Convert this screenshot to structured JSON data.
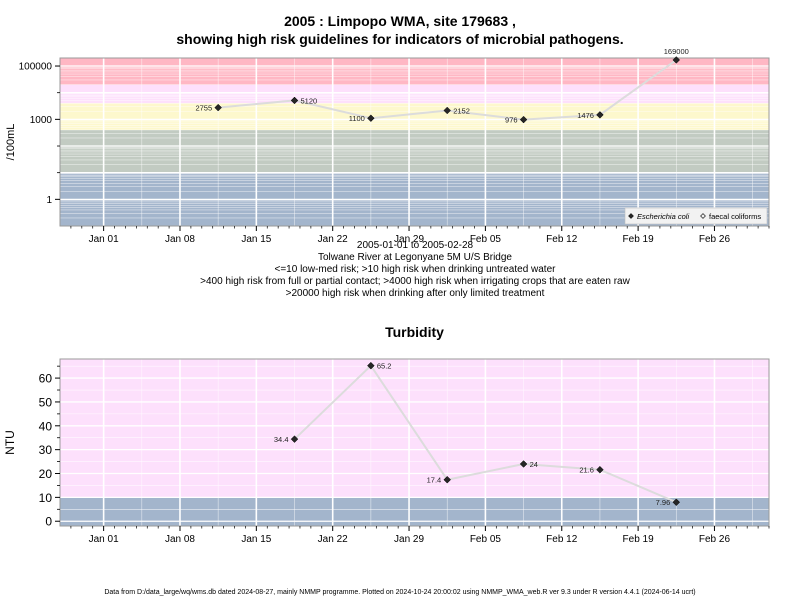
{
  "title": {
    "line1": "2005 : Limpopo WMA, site 179683 ,",
    "line2": "showing high risk guidelines for indicators of microbial pathogens."
  },
  "caption": {
    "date_range": "2005-01-01 to 2005-02-28",
    "site": "Tolwane River at Legonyane 5M U/S Bridge",
    "line3": "<=10 low-med risk; >10 high risk when drinking untreated water",
    "line4": ">400 high risk from full or partial contact; >4000 high risk when irrigating crops that are eaten raw",
    "line5": ">20000 high risk when drinking after only limited treatment"
  },
  "footer": "Data from D:/data_large/wq/wms.db dated 2024-08-27, mainly NMMP programme. Plotted on 2024-10-24 20:00:02 using NMMP_WMA_web.R ver 9.3 under R version 4.4.1 (2024-06-14 ucrt)",
  "colors": {
    "band_blue": "#a3b5cc",
    "band_green": "#c2cbc2",
    "band_yellow": "#fdf8cd",
    "band_pink": "#fde0fc",
    "band_red": "#ffb7c4",
    "line": "#dcdcdc",
    "marker": "#262626",
    "grid": "#ffffff"
  },
  "chart_data": [
    {
      "type": "line",
      "title": "",
      "ylabel": "/100mL",
      "yscale": "log",
      "ylim": [
        0.1,
        200000
      ],
      "x_ticks": [
        "Jan 01",
        "Jan 08",
        "Jan 15",
        "Jan 22",
        "Jan 29",
        "Feb 05",
        "Feb 12",
        "Feb 19",
        "Feb 26"
      ],
      "y_ticks": [
        {
          "value": 1,
          "label": "1"
        },
        {
          "value": 1000,
          "label": "1000"
        },
        {
          "value": 100000,
          "label": "100000"
        }
      ],
      "risk_bands": [
        {
          "from": 0.1,
          "to": 10,
          "color": "band_blue"
        },
        {
          "from": 10,
          "to": 400,
          "color": "band_green"
        },
        {
          "from": 400,
          "to": 4000,
          "color": "band_yellow"
        },
        {
          "from": 4000,
          "to": 20000,
          "color": "band_pink"
        },
        {
          "from": 20000,
          "to": 200000,
          "color": "band_red"
        }
      ],
      "legend": {
        "position": "bottom-right",
        "entries": [
          {
            "name": "Escherichia coli",
            "marker": "filled-diamond",
            "italic": true
          },
          {
            "name": "faecal coliforms",
            "marker": "open-diamond",
            "italic": false
          }
        ]
      },
      "series": [
        {
          "name": "Escherichia coli",
          "points": [
            {
              "x": "2005-01-11",
              "y": 2755,
              "label": "2755"
            },
            {
              "x": "2005-01-18",
              "y": 5120,
              "label": "5120"
            },
            {
              "x": "2005-01-25",
              "y": 1100,
              "label": "1100"
            },
            {
              "x": "2005-02-01",
              "y": 2152,
              "label": "2152"
            },
            {
              "x": "2005-02-08",
              "y": 976,
              "label": "976"
            },
            {
              "x": "2005-02-15",
              "y": 1476,
              "label": "1476"
            },
            {
              "x": "2005-02-22",
              "y": 169000,
              "label": "169000"
            }
          ]
        }
      ]
    },
    {
      "type": "line",
      "title": "Turbidity",
      "ylabel": "NTU",
      "yscale": "linear",
      "ylim": [
        -2,
        68
      ],
      "x_ticks": [
        "Jan 01",
        "Jan 08",
        "Jan 15",
        "Jan 22",
        "Jan 29",
        "Feb 05",
        "Feb 12",
        "Feb 19",
        "Feb 26"
      ],
      "y_ticks": [
        {
          "value": 0,
          "label": "0"
        },
        {
          "value": 10,
          "label": "10"
        },
        {
          "value": 20,
          "label": "20"
        },
        {
          "value": 30,
          "label": "30"
        },
        {
          "value": 40,
          "label": "40"
        },
        {
          "value": 50,
          "label": "50"
        },
        {
          "value": 60,
          "label": "60"
        }
      ],
      "risk_bands": [
        {
          "from": -2,
          "to": 10,
          "color": "band_blue"
        },
        {
          "from": 10,
          "to": 68,
          "color": "band_pink"
        }
      ],
      "series": [
        {
          "name": "",
          "points": [
            {
              "x": "2005-01-18",
              "y": 34.4,
              "label": "34.4"
            },
            {
              "x": "2005-01-25",
              "y": 65.2,
              "label": "65.2"
            },
            {
              "x": "2005-02-01",
              "y": 17.4,
              "label": "17.4"
            },
            {
              "x": "2005-02-08",
              "y": 24,
              "label": "24"
            },
            {
              "x": "2005-02-15",
              "y": 21.6,
              "label": "21.6"
            },
            {
              "x": "2005-02-22",
              "y": 7.96,
              "label": "7.96"
            }
          ]
        }
      ]
    }
  ]
}
